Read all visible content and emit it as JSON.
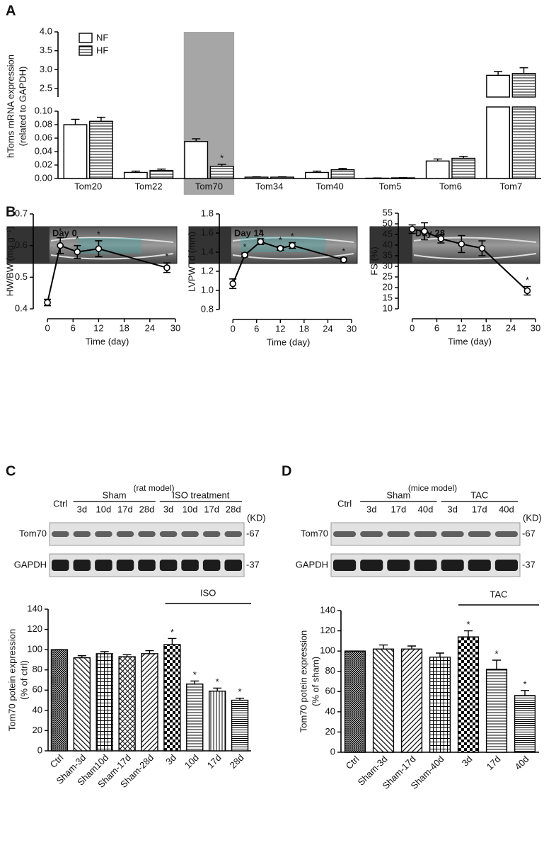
{
  "panel_labels": [
    "A",
    "B",
    "C",
    "D"
  ],
  "echo_labels": [
    "Day 0",
    "Day 14",
    "Day 28"
  ],
  "chart_data": [
    {
      "type": "broken_bar",
      "categories": [
        "Tom20",
        "Tom22",
        "Tom70",
        "Tom34",
        "Tom40",
        "Tom5",
        "Tom6",
        "Tom7"
      ],
      "series": [
        {
          "name": "NF",
          "color": "#ffffff",
          "hatch": "none",
          "values": [
            0.08,
            0.009,
            0.055,
            0.002,
            0.009,
            0.0005,
            0.026,
            2.85
          ],
          "errors": [
            0.008,
            0.002,
            0.004,
            0.0005,
            0.002,
            0.0003,
            0.003,
            0.1
          ]
        },
        {
          "name": "HF",
          "color": "#ffffff",
          "hatch": "horizontal",
          "values": [
            0.085,
            0.012,
            0.018,
            0.002,
            0.013,
            0.001,
            0.03,
            2.9
          ],
          "errors": [
            0.006,
            0.002,
            0.003,
            0.0005,
            0.002,
            0.0003,
            0.003,
            0.15
          ],
          "annotations": [
            null,
            null,
            "*",
            null,
            null,
            null,
            null,
            null
          ]
        }
      ],
      "ylabel": [
        "hToms mRNA expression",
        "(related to GAPDH)"
      ],
      "ylim": [
        0,
        0.1
      ],
      "yticks": [
        {
          "value": 0,
          "label": "0.00"
        },
        {
          "value": 0.02,
          "label": "0.02"
        },
        {
          "value": 0.04,
          "label": "0.04"
        },
        {
          "value": 0.06,
          "label": "0.06"
        },
        {
          "value": 0.08,
          "label": "0.08"
        },
        {
          "value": 0.1,
          "label": "0.10"
        }
      ],
      "y_break": {
        "ylim": [
          2.5,
          4
        ],
        "yticks": [
          2.5,
          {
            "value": 3,
            "label": "3.0"
          },
          3.5,
          {
            "value": 4,
            "label": "4.0"
          }
        ]
      },
      "highlight": "Tom70",
      "highlight_color": "#a6a6a6",
      "legend": "upper left"
    },
    {
      "type": "line",
      "xlabel": "Time (day)",
      "ylabel": "HW/BW (mg.g⁻¹)",
      "x": [
        0,
        3,
        7,
        12,
        28
      ],
      "series": [
        {
          "color": "#000000",
          "values": [
            0.42,
            0.6,
            0.58,
            0.59,
            0.53
          ],
          "errors": [
            0.01,
            0.025,
            0.02,
            0.025,
            0.015
          ],
          "annotations": [
            null,
            "*",
            "*",
            "*",
            "*"
          ]
        }
      ],
      "xlim": [
        -2,
        30
      ],
      "xticks": [
        0,
        6,
        12,
        18,
        24,
        30
      ],
      "ylim": [
        0.4,
        0.7
      ],
      "yticks": [
        0.4,
        0.5,
        0.6,
        0.7
      ]
    },
    {
      "type": "line",
      "xlabel": "Time (day)",
      "ylabel": "LVPWTd (mm)",
      "x": [
        0,
        3,
        7,
        12,
        15,
        28
      ],
      "series": [
        {
          "color": "#000000",
          "values": [
            1.07,
            1.37,
            1.51,
            1.44,
            1.47,
            1.32
          ],
          "errors": [
            0.05,
            0.02,
            0.03,
            0.02,
            0.03,
            0.02
          ],
          "annotations": [
            null,
            "*",
            "*",
            "*",
            "*",
            "*"
          ]
        }
      ],
      "xlim": [
        -2,
        30
      ],
      "xticks": [
        0,
        6,
        12,
        18,
        24,
        30
      ],
      "ylim": [
        0.8,
        1.8
      ],
      "yticks": [
        0.8,
        {
          "value": 1,
          "label": "1.0"
        },
        1.2,
        1.4,
        1.6,
        1.8
      ]
    },
    {
      "type": "line",
      "xlabel": "Time (day)",
      "ylabel": "FS (%)",
      "x": [
        0,
        3,
        7,
        12,
        17,
        28
      ],
      "series": [
        {
          "color": "#000000",
          "values": [
            47.5,
            46.5,
            43,
            40.5,
            38.5,
            18.5
          ],
          "errors": [
            2,
            4,
            2,
            4,
            3.5,
            2
          ],
          "annotations": [
            null,
            null,
            null,
            null,
            null,
            "*"
          ]
        }
      ],
      "xlim": [
        -2,
        30
      ],
      "xticks": [
        0,
        6,
        12,
        18,
        24,
        30
      ],
      "ylim": [
        10,
        55
      ],
      "yticks": [
        10,
        15,
        20,
        25,
        30,
        35,
        40,
        45,
        50,
        55
      ]
    },
    {
      "type": "bar",
      "categories": [
        "Ctrl",
        "Sham-3d",
        "Sham10d",
        "Sham-17d",
        "Sham-28d",
        "3d",
        "10d",
        "17d",
        "28d"
      ],
      "values": [
        100,
        92,
        96,
        93,
        96,
        105,
        66,
        59,
        50
      ],
      "errors": [
        0,
        2,
        2,
        2,
        3,
        6,
        3,
        3,
        2
      ],
      "annotations": [
        null,
        null,
        null,
        null,
        null,
        "*",
        "*",
        "*",
        "*"
      ],
      "bracket": {
        "label": "ISO",
        "from": "3d",
        "to": "28d"
      },
      "ylabel": [
        "Tom70 potein expression",
        "(% of ctrl)"
      ],
      "color": "#000000",
      "ylim": [
        0,
        140
      ],
      "yticks": [
        0,
        20,
        40,
        60,
        80,
        100,
        120,
        140
      ]
    },
    {
      "type": "bar",
      "categories": [
        "Ctrl",
        "Sham-3d",
        "Sham-17d",
        "Sham-40d",
        "3d",
        "17d",
        "40d"
      ],
      "values": [
        100,
        102,
        102,
        94,
        114,
        82,
        56
      ],
      "errors": [
        0,
        4,
        3,
        4,
        6,
        9,
        5
      ],
      "annotations": [
        null,
        null,
        null,
        null,
        "*",
        "*",
        "*"
      ],
      "bracket": {
        "label": "TAC",
        "from": "3d",
        "to": "40d"
      },
      "ylabel": [
        "Tom70 potein expression",
        "(% of sham)"
      ],
      "color": "#000000",
      "ylim": [
        0,
        140
      ],
      "yticks": [
        0,
        20,
        40,
        60,
        80,
        100,
        120,
        140
      ]
    }
  ],
  "blots": [
    {
      "title": "(rat model)",
      "control": "Ctrl",
      "groups": [
        {
          "name": "Sham",
          "lanes": [
            "3d",
            "10d",
            "17d",
            "28d"
          ]
        },
        {
          "name": "ISO treatment",
          "lanes": [
            "3d",
            "10d",
            "17d",
            "28d"
          ]
        }
      ],
      "unit": "(KD)",
      "rows": [
        {
          "name": "Tom70",
          "size": "-67"
        },
        {
          "name": "GAPDH",
          "size": "-37"
        }
      ]
    },
    {
      "title": "(mice model)",
      "control": "Ctrl",
      "groups": [
        {
          "name": "Sham",
          "lanes": [
            "3d",
            "17d",
            "40d"
          ]
        },
        {
          "name": "TAC",
          "lanes": [
            "3d",
            "17d",
            "40d"
          ]
        }
      ],
      "unit": "(KD)",
      "rows": [
        {
          "name": "Tom70",
          "size": "-67"
        },
        {
          "name": "GAPDH",
          "size": "-37"
        }
      ]
    }
  ]
}
